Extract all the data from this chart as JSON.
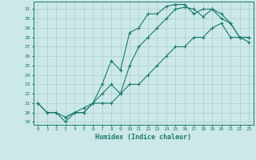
{
  "xlabel": "Humidex (Indice chaleur)",
  "bg_color": "#cce8e8",
  "line_color": "#1a7a6e",
  "grid_color": "#aacfcf",
  "xlim": [
    -0.5,
    23.5
  ],
  "ylim": [
    18.7,
    31.8
  ],
  "xticks": [
    0,
    1,
    2,
    3,
    4,
    5,
    6,
    7,
    8,
    9,
    10,
    11,
    12,
    13,
    14,
    15,
    16,
    17,
    18,
    19,
    20,
    21,
    22,
    23
  ],
  "yticks": [
    19,
    20,
    21,
    22,
    23,
    24,
    25,
    26,
    27,
    28,
    29,
    30,
    31
  ],
  "line1_x": [
    0,
    1,
    2,
    3,
    4,
    5,
    6,
    7,
    8,
    9,
    10,
    11,
    12,
    13,
    14,
    15,
    16,
    17,
    18,
    19,
    20,
    21,
    22,
    23
  ],
  "line1_y": [
    21,
    20,
    20,
    19,
    20,
    20,
    21,
    21,
    21,
    22,
    23,
    23,
    24,
    25,
    26,
    27,
    27,
    28,
    28,
    29,
    29.5,
    28,
    28,
    27.5
  ],
  "line2_x": [
    0,
    1,
    2,
    3,
    4,
    5,
    6,
    7,
    8,
    9,
    10,
    11,
    12,
    13,
    14,
    15,
    16,
    17,
    18,
    19,
    20,
    21,
    22,
    23
  ],
  "line2_y": [
    21,
    20,
    20,
    19.5,
    20,
    20.5,
    21,
    23,
    25.5,
    24.5,
    28.5,
    29,
    30.5,
    30.5,
    31.3,
    31.5,
    31.5,
    30.5,
    31,
    31,
    30,
    29.5,
    28,
    28
  ],
  "line3_x": [
    3,
    4,
    5,
    6,
    7,
    8,
    9,
    10,
    11,
    12,
    13,
    14,
    15,
    16,
    17,
    18,
    19,
    20,
    21,
    22,
    23
  ],
  "line3_y": [
    19.5,
    20,
    20,
    21,
    22,
    23,
    22,
    25,
    27,
    28,
    29,
    30,
    31,
    31.2,
    31,
    30.2,
    31,
    30.5,
    29.5,
    28,
    28
  ]
}
